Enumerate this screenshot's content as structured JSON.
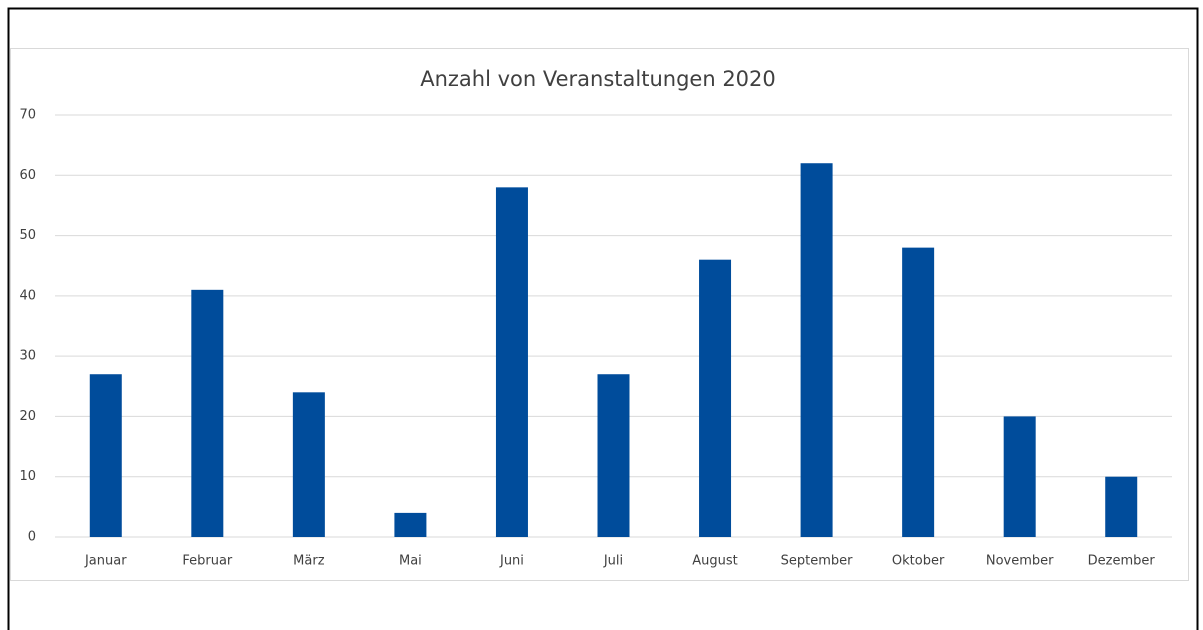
{
  "chart_data": {
    "type": "bar",
    "title": "Anzahl von Veranstaltungen 2020",
    "categories": [
      "Januar",
      "Februar",
      "März",
      "Mai",
      "Juni",
      "Juli",
      "August",
      "September",
      "Oktober",
      "November",
      "Dezember"
    ],
    "values": [
      27,
      41,
      24,
      4,
      58,
      27,
      46,
      62,
      48,
      20,
      10
    ],
    "color": "#004c9b",
    "ylim": [
      0,
      70
    ],
    "yticks": [
      0,
      10,
      20,
      30,
      40,
      50,
      60,
      70
    ],
    "grid": true
  }
}
